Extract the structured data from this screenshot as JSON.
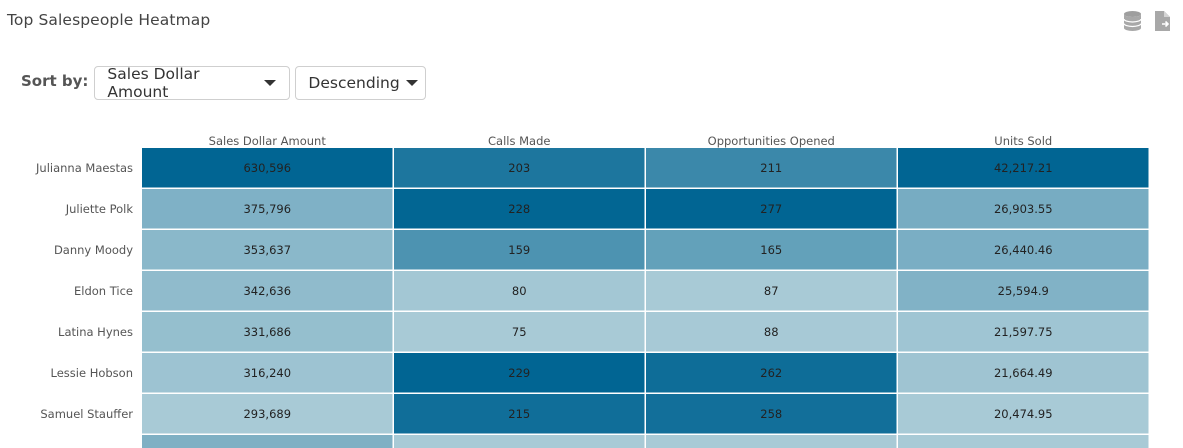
{
  "title": "Top Salespeople Heatmap",
  "icons": [
    "database-icon",
    "export-file-icon"
  ],
  "sort": {
    "label": "Sort by:",
    "field": "Sales Dollar Amount",
    "order": "Descending"
  },
  "colors": {
    "scale_low": "#a8cad6",
    "scale_high": "#016593",
    "cell_text": "#222222",
    "header_text": "#555555"
  },
  "chart_data": {
    "type": "heatmap",
    "columns": [
      "Sales Dollar Amount",
      "Calls Made",
      "Opportunities Opened",
      "Units Sold"
    ],
    "rows": [
      "Julianna Maestas",
      "Juliette Polk",
      "Danny Moody",
      "Eldon Tice",
      "Latina Hynes",
      "Lessie Hobson",
      "Samuel Stauffer"
    ],
    "values": [
      [
        630596,
        203,
        211,
        42217.21
      ],
      [
        375796,
        228,
        277,
        26903.55
      ],
      [
        353637,
        159,
        165,
        26440.46
      ],
      [
        342636,
        80,
        87,
        25594.9
      ],
      [
        331686,
        75,
        88,
        21597.75
      ],
      [
        316240,
        229,
        262,
        21664.49
      ],
      [
        293689,
        215,
        258,
        20474.95
      ]
    ],
    "labels": [
      [
        "630,596",
        "203",
        "211",
        "42,217.21"
      ],
      [
        "375,796",
        "228",
        "277",
        "26,903.55"
      ],
      [
        "353,637",
        "159",
        "165",
        "26,440.46"
      ],
      [
        "342,636",
        "80",
        "87",
        "25,594.9"
      ],
      [
        "331,686",
        "75",
        "88",
        "21,597.75"
      ],
      [
        "316,240",
        "229",
        "262",
        "21,664.49"
      ],
      [
        "293,689",
        "215",
        "258",
        "20,474.95"
      ]
    ],
    "color_scale": "per-column"
  }
}
